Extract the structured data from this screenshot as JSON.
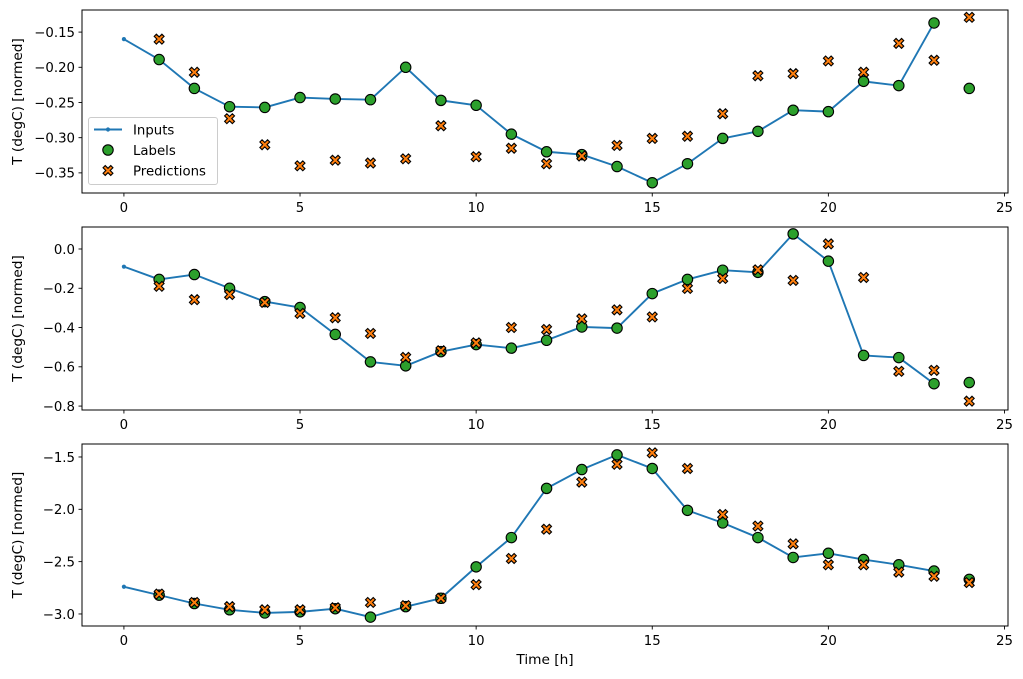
{
  "figure": {
    "background": "#ffffff",
    "xlabel": "Time [h]",
    "ylabel": "T (degC) [normed]",
    "colors": {
      "inputs_line": "#1f77b4",
      "labels_marker": "#2ca02c",
      "predictions_marker": "#ff7f0e",
      "marker_edge": "#000000",
      "legend_border": "#cccccc",
      "axis": "#000000",
      "text": "#000000"
    },
    "legend": {
      "entries": [
        {
          "label": "Inputs",
          "type": "line"
        },
        {
          "label": "Labels",
          "type": "circle"
        },
        {
          "label": "Predictions",
          "type": "x"
        }
      ],
      "position": "upper-left-of-first-subplot"
    }
  },
  "chart_data": [
    {
      "type": "line",
      "subplot": "top",
      "ylabel": "T (degC) [normed]",
      "ylim": [
        -0.3786,
        -0.1186
      ],
      "yticks": [
        -0.15,
        -0.2,
        -0.25,
        -0.3,
        -0.35
      ],
      "ytick_labels": [
        "−0.15",
        "−0.20",
        "−0.25",
        "−0.30",
        "−0.35"
      ],
      "xlim": [
        -1.19,
        25.1
      ],
      "xticks": [
        0,
        5,
        10,
        15,
        20,
        25
      ],
      "xtick_labels": [
        "0",
        "5",
        "10",
        "15",
        "20",
        "25"
      ],
      "grid": false,
      "legend_visible": true,
      "series": [
        {
          "name": "Inputs",
          "style": "line-dot",
          "x": [
            0,
            1,
            2,
            3,
            4,
            5,
            6,
            7,
            8,
            9,
            10,
            11,
            12,
            13,
            14,
            15,
            16,
            17,
            18,
            19,
            20,
            21,
            22,
            23
          ],
          "y": [
            -0.16,
            -0.189,
            -0.23,
            -0.256,
            -0.257,
            -0.243,
            -0.245,
            -0.246,
            -0.2,
            -0.247,
            -0.254,
            -0.295,
            -0.32,
            -0.324,
            -0.341,
            -0.364,
            -0.337,
            -0.301,
            -0.291,
            -0.261,
            -0.263,
            -0.22,
            -0.226,
            -0.137
          ]
        },
        {
          "name": "Labels",
          "style": "circle",
          "x": [
            1,
            2,
            3,
            4,
            5,
            6,
            7,
            8,
            9,
            10,
            11,
            12,
            13,
            14,
            15,
            16,
            17,
            18,
            19,
            20,
            21,
            22,
            23,
            24
          ],
          "y": [
            -0.189,
            -0.23,
            -0.256,
            -0.257,
            -0.243,
            -0.245,
            -0.246,
            -0.2,
            -0.247,
            -0.254,
            -0.295,
            -0.32,
            -0.324,
            -0.341,
            -0.364,
            -0.337,
            -0.301,
            -0.291,
            -0.261,
            -0.263,
            -0.22,
            -0.226,
            -0.137,
            -0.23
          ]
        },
        {
          "name": "Predictions",
          "style": "x",
          "x": [
            1,
            2,
            3,
            4,
            5,
            6,
            7,
            8,
            9,
            10,
            11,
            12,
            13,
            14,
            15,
            16,
            17,
            18,
            19,
            20,
            21,
            22,
            23,
            24
          ],
          "y": [
            -0.16,
            -0.207,
            -0.273,
            -0.31,
            -0.34,
            -0.332,
            -0.336,
            -0.33,
            -0.283,
            -0.327,
            -0.315,
            -0.337,
            -0.326,
            -0.311,
            -0.301,
            -0.298,
            -0.266,
            -0.212,
            -0.209,
            -0.191,
            -0.207,
            -0.166,
            -0.19,
            -0.129
          ]
        }
      ]
    },
    {
      "type": "line",
      "subplot": "middle",
      "ylabel": "T (degC) [normed]",
      "ylim": [
        -0.82,
        0.112
      ],
      "yticks": [
        0.0,
        -0.2,
        -0.4,
        -0.6,
        -0.8
      ],
      "ytick_labels": [
        "0.0",
        "−0.2",
        "−0.4",
        "−0.6",
        "−0.8"
      ],
      "xlim": [
        -1.19,
        25.1
      ],
      "xticks": [
        0,
        5,
        10,
        15,
        20,
        25
      ],
      "xtick_labels": [
        "0",
        "5",
        "10",
        "15",
        "20",
        "25"
      ],
      "grid": false,
      "legend_visible": false,
      "series": [
        {
          "name": "Inputs",
          "style": "line-dot",
          "x": [
            0,
            1,
            2,
            3,
            4,
            5,
            6,
            7,
            8,
            9,
            10,
            11,
            12,
            13,
            14,
            15,
            16,
            17,
            18,
            19,
            20,
            21,
            22,
            23
          ],
          "y": [
            -0.09,
            -0.155,
            -0.13,
            -0.2,
            -0.268,
            -0.298,
            -0.435,
            -0.575,
            -0.595,
            -0.523,
            -0.487,
            -0.505,
            -0.465,
            -0.397,
            -0.403,
            -0.227,
            -0.155,
            -0.108,
            -0.119,
            0.077,
            -0.062,
            -0.542,
            -0.553,
            -0.686
          ]
        },
        {
          "name": "Labels",
          "style": "circle",
          "x": [
            1,
            2,
            3,
            4,
            5,
            6,
            7,
            8,
            9,
            10,
            11,
            12,
            13,
            14,
            15,
            16,
            17,
            18,
            19,
            20,
            21,
            22,
            23,
            24
          ],
          "y": [
            -0.155,
            -0.13,
            -0.2,
            -0.268,
            -0.298,
            -0.435,
            -0.575,
            -0.595,
            -0.523,
            -0.487,
            -0.505,
            -0.465,
            -0.397,
            -0.403,
            -0.227,
            -0.155,
            -0.108,
            -0.119,
            0.077,
            -0.062,
            -0.542,
            -0.553,
            -0.686,
            -0.68
          ]
        },
        {
          "name": "Predictions",
          "style": "x",
          "x": [
            1,
            2,
            3,
            4,
            5,
            6,
            7,
            8,
            9,
            10,
            11,
            12,
            13,
            14,
            15,
            16,
            17,
            18,
            19,
            20,
            21,
            22,
            23,
            24
          ],
          "y": [
            -0.19,
            -0.258,
            -0.232,
            -0.272,
            -0.328,
            -0.35,
            -0.43,
            -0.552,
            -0.518,
            -0.478,
            -0.4,
            -0.41,
            -0.356,
            -0.31,
            -0.346,
            -0.201,
            -0.15,
            -0.106,
            -0.16,
            0.026,
            -0.145,
            -0.623,
            -0.618,
            -0.775
          ]
        }
      ]
    },
    {
      "type": "line",
      "subplot": "bottom",
      "ylabel": "T (degC) [normed]",
      "xlabel": "Time [h]",
      "ylim": [
        -3.115,
        -1.376
      ],
      "yticks": [
        -1.5,
        -2.0,
        -2.5,
        -3.0
      ],
      "ytick_labels": [
        "−1.5",
        "−2.0",
        "−2.5",
        "−3.0"
      ],
      "xlim": [
        -1.19,
        25.1
      ],
      "xticks": [
        0,
        5,
        10,
        15,
        20,
        25
      ],
      "xtick_labels": [
        "0",
        "5",
        "10",
        "15",
        "20",
        "25"
      ],
      "grid": false,
      "legend_visible": false,
      "series": [
        {
          "name": "Inputs",
          "style": "line-dot",
          "x": [
            0,
            1,
            2,
            3,
            4,
            5,
            6,
            7,
            8,
            9,
            10,
            11,
            12,
            13,
            14,
            15,
            16,
            17,
            18,
            19,
            20,
            21,
            22,
            23
          ],
          "y": [
            -2.74,
            -2.82,
            -2.9,
            -2.96,
            -2.99,
            -2.98,
            -2.95,
            -3.03,
            -2.93,
            -2.85,
            -2.55,
            -2.27,
            -1.8,
            -1.62,
            -1.48,
            -1.61,
            -2.01,
            -2.13,
            -2.27,
            -2.46,
            -2.42,
            -2.48,
            -2.53,
            -2.59
          ]
        },
        {
          "name": "Labels",
          "style": "circle",
          "x": [
            1,
            2,
            3,
            4,
            5,
            6,
            7,
            8,
            9,
            10,
            11,
            12,
            13,
            14,
            15,
            16,
            17,
            18,
            19,
            20,
            21,
            22,
            23,
            24
          ],
          "y": [
            -2.82,
            -2.9,
            -2.96,
            -2.99,
            -2.98,
            -2.95,
            -3.03,
            -2.93,
            -2.85,
            -2.55,
            -2.27,
            -1.8,
            -1.62,
            -1.48,
            -1.61,
            -2.01,
            -2.13,
            -2.27,
            -2.46,
            -2.42,
            -2.48,
            -2.53,
            -2.59,
            -2.67
          ]
        },
        {
          "name": "Predictions",
          "style": "x",
          "x": [
            1,
            2,
            3,
            4,
            5,
            6,
            7,
            8,
            9,
            10,
            11,
            12,
            13,
            14,
            15,
            16,
            17,
            18,
            19,
            20,
            21,
            22,
            23,
            24
          ],
          "y": [
            -2.81,
            -2.89,
            -2.93,
            -2.96,
            -2.96,
            -2.94,
            -2.89,
            -2.92,
            -2.85,
            -2.72,
            -2.47,
            -2.19,
            -1.74,
            -1.57,
            -1.46,
            -1.61,
            -2.05,
            -2.16,
            -2.33,
            -2.53,
            -2.53,
            -2.6,
            -2.64,
            -2.7
          ]
        }
      ]
    }
  ]
}
